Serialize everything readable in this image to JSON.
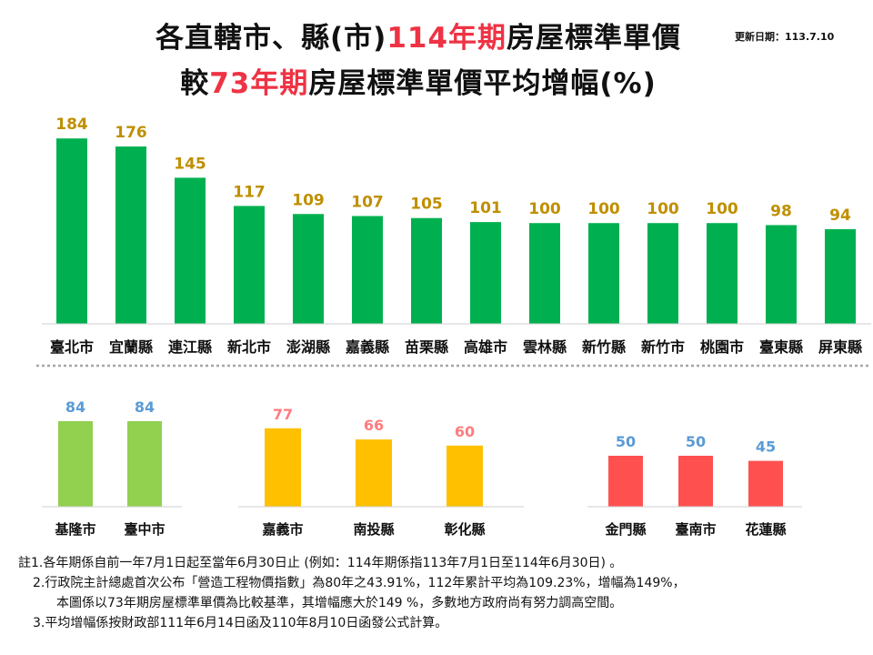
{
  "header": {
    "title_line1_a": "各直轄市、縣(市)",
    "title_line1_b": "114年期",
    "title_line1_c": "房屋標準單價",
    "title_line2_a": "較",
    "title_line2_b": "73年期",
    "title_line2_c": "房屋標準單價平均增幅(%)",
    "update_date": "更新日期：113.7.10",
    "highlight_color": "#ee3344"
  },
  "chart_data": [
    {
      "type": "bar",
      "title": "各直轄市、縣(市)114年期房屋標準單價較73年期房屋標準單價平均增幅(%)",
      "color": "#00b050",
      "label_color": "#bf8f00",
      "categories": [
        "臺北市",
        "宜蘭縣",
        "連江縣",
        "新北市",
        "澎湖縣",
        "嘉義縣",
        "苗栗縣",
        "高雄市",
        "雲林縣",
        "新竹縣",
        "新竹市",
        "桃園市",
        "臺東縣",
        "屏東縣"
      ],
      "values": [
        184,
        176,
        145,
        117,
        109,
        107,
        105,
        101,
        100,
        100,
        100,
        100,
        98,
        94
      ],
      "ylim": [
        0,
        195
      ]
    },
    {
      "type": "bar",
      "color": "#92d050",
      "label_color": "#5b9bd5",
      "categories": [
        "基隆市",
        "臺中市"
      ],
      "values": [
        84,
        84
      ],
      "ylim": [
        0,
        100
      ]
    },
    {
      "type": "bar",
      "color": "#ffc000",
      "label_color": "#ff7c80",
      "categories": [
        "嘉義市",
        "南投縣",
        "彰化縣"
      ],
      "values": [
        77,
        66,
        60
      ],
      "ylim": [
        0,
        100
      ]
    },
    {
      "type": "bar",
      "color": "#ff5050",
      "label_color": "#5b9bd5",
      "categories": [
        "金門縣",
        "臺南市",
        "花蓮縣"
      ],
      "values": [
        50,
        50,
        45
      ],
      "ylim": [
        0,
        100
      ]
    }
  ],
  "notes": {
    "line1": "註1.各年期係自前一年7月1日起至當年6月30日止 (例如：114年期係指113年7月1日至114年6月30日) 。",
    "line2": "2.行政院主計總處首次公布「營造工程物價指數」為80年之43.91%，112年累計平均為109.23%，增幅為149%，",
    "line3": "本圖係以73年期房屋標準單價為比較基準，其增幅應大於149 %，多數地方政府尚有努力調高空間。",
    "line4": "3.平均增幅係按財政部111年6月14日函及110年8月10日函發公式計算。"
  }
}
